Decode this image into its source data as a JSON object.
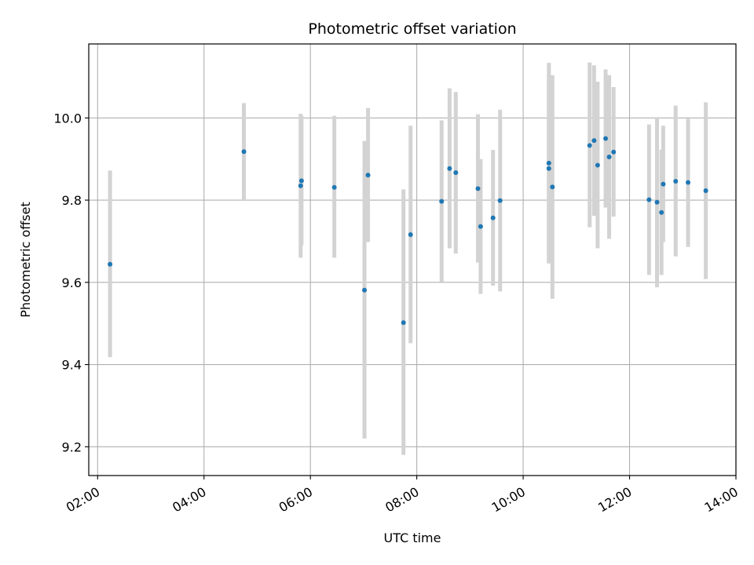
{
  "chart_data": {
    "type": "scatter",
    "title": "Photometric offset variation",
    "xlabel": "UTC time",
    "ylabel": "Photometric offset",
    "x_axis_type": "time",
    "xlim": [
      "01:50",
      "14:00"
    ],
    "ylim": [
      9.13,
      10.18
    ],
    "xticks": [
      "02:00",
      "04:00",
      "06:00",
      "08:00",
      "10:00",
      "12:00",
      "14:00"
    ],
    "yticks": [
      9.2,
      9.4,
      9.6,
      9.8,
      10.0
    ],
    "grid": true,
    "legend": "none",
    "point_color": "#1f77b4",
    "errorbar_color": "#d3d3d3",
    "points": [
      {
        "t": "02:14",
        "y": 9.644,
        "lo": 9.418,
        "hi": 9.872
      },
      {
        "t": "04:45",
        "y": 9.918,
        "lo": 9.8,
        "hi": 10.036
      },
      {
        "t": "05:49",
        "y": 9.835,
        "lo": 9.66,
        "hi": 10.01
      },
      {
        "t": "05:50",
        "y": 9.847,
        "lo": 9.69,
        "hi": 10.005
      },
      {
        "t": "06:27",
        "y": 9.831,
        "lo": 9.66,
        "hi": 10.005
      },
      {
        "t": "07:01",
        "y": 9.581,
        "lo": 9.22,
        "hi": 9.944
      },
      {
        "t": "07:05",
        "y": 9.861,
        "lo": 9.698,
        "hi": 10.024
      },
      {
        "t": "07:45",
        "y": 9.502,
        "lo": 9.18,
        "hi": 9.826
      },
      {
        "t": "07:53",
        "y": 9.716,
        "lo": 9.452,
        "hi": 9.981
      },
      {
        "t": "08:28",
        "y": 9.797,
        "lo": 9.601,
        "hi": 9.994
      },
      {
        "t": "08:37",
        "y": 9.877,
        "lo": 9.683,
        "hi": 10.072
      },
      {
        "t": "08:44",
        "y": 9.867,
        "lo": 9.67,
        "hi": 10.063
      },
      {
        "t": "09:09",
        "y": 9.828,
        "lo": 9.648,
        "hi": 10.009
      },
      {
        "t": "09:12",
        "y": 9.736,
        "lo": 9.572,
        "hi": 9.9
      },
      {
        "t": "09:26",
        "y": 9.757,
        "lo": 9.592,
        "hi": 9.922
      },
      {
        "t": "09:34",
        "y": 9.799,
        "lo": 9.578,
        "hi": 10.02
      },
      {
        "t": "10:29",
        "y": 9.89,
        "lo": 9.646,
        "hi": 10.134
      },
      {
        "t": "10:29",
        "y": 9.877,
        "lo": 9.648,
        "hi": 10.106
      },
      {
        "t": "10:33",
        "y": 9.832,
        "lo": 9.56,
        "hi": 10.104
      },
      {
        "t": "11:15",
        "y": 9.933,
        "lo": 9.734,
        "hi": 10.135
      },
      {
        "t": "11:20",
        "y": 9.945,
        "lo": 9.762,
        "hi": 10.128
      },
      {
        "t": "11:24",
        "y": 9.885,
        "lo": 9.683,
        "hi": 10.088
      },
      {
        "t": "11:33",
        "y": 9.95,
        "lo": 9.782,
        "hi": 10.118
      },
      {
        "t": "11:37",
        "y": 9.905,
        "lo": 9.706,
        "hi": 10.104
      },
      {
        "t": "11:42",
        "y": 9.917,
        "lo": 9.76,
        "hi": 10.075
      },
      {
        "t": "12:22",
        "y": 9.801,
        "lo": 9.618,
        "hi": 9.984
      },
      {
        "t": "12:31",
        "y": 9.795,
        "lo": 9.588,
        "hi": 10.002
      },
      {
        "t": "12:36",
        "y": 9.77,
        "lo": 9.618,
        "hi": 9.923
      },
      {
        "t": "12:38",
        "y": 9.839,
        "lo": 9.698,
        "hi": 9.981
      },
      {
        "t": "12:52",
        "y": 9.846,
        "lo": 9.663,
        "hi": 10.03
      },
      {
        "t": "13:06",
        "y": 9.843,
        "lo": 9.686,
        "hi": 9.998
      },
      {
        "t": "13:26",
        "y": 9.823,
        "lo": 9.608,
        "hi": 10.038
      }
    ]
  }
}
